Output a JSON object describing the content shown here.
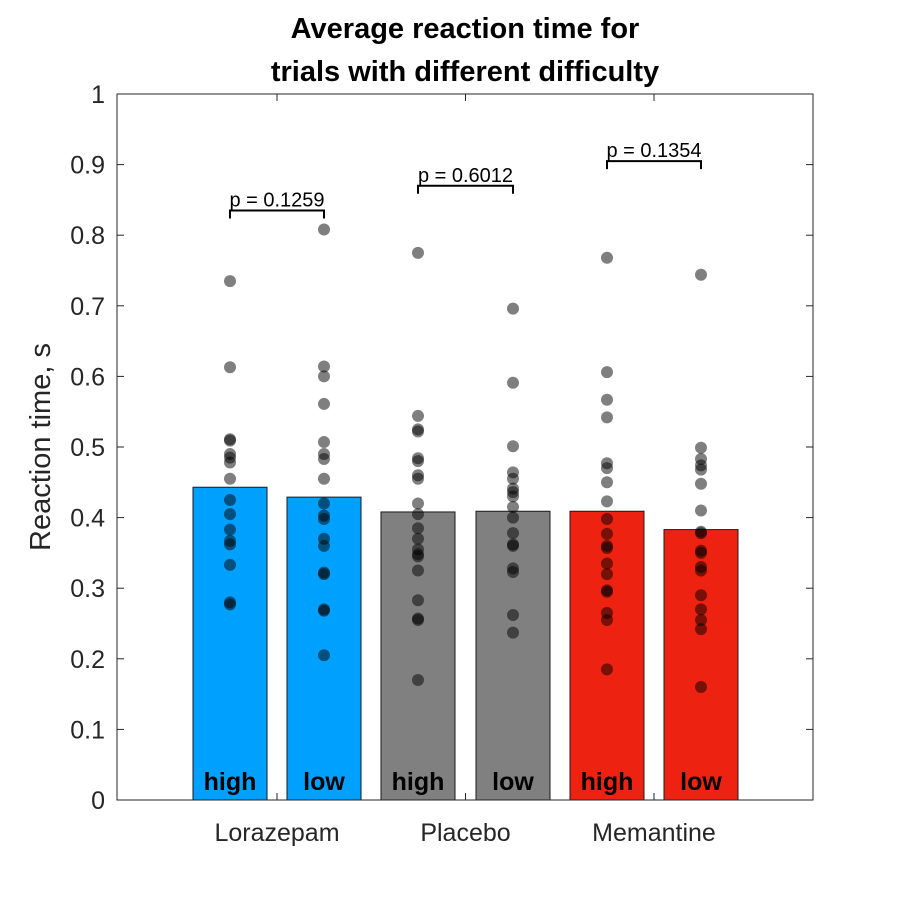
{
  "chart_data": {
    "type": "bar",
    "title_lines": [
      "Average reaction time for",
      "trials with different difficulty"
    ],
    "xlabel": "",
    "ylabel": "Reaction time, s",
    "ylim": [
      0,
      1
    ],
    "yticks": [
      "0",
      "0.1",
      "0.2",
      "0.3",
      "0.4",
      "0.5",
      "0.6",
      "0.7",
      "0.8",
      "0.9",
      "1"
    ],
    "grid": false,
    "groups": [
      "Lorazepam",
      "Placebo",
      "Memantine"
    ],
    "bars": [
      {
        "group": "Lorazepam",
        "label": "high",
        "value": 0.443,
        "color": "#00a0ff",
        "points": [
          0.735,
          0.613,
          0.511,
          0.509,
          0.49,
          0.485,
          0.478,
          0.455,
          0.425,
          0.405,
          0.383,
          0.367,
          0.362,
          0.333,
          0.28,
          0.277
        ]
      },
      {
        "group": "Lorazepam",
        "label": "low",
        "value": 0.429,
        "color": "#00a0ff",
        "points": [
          0.808,
          0.614,
          0.6,
          0.561,
          0.507,
          0.49,
          0.483,
          0.455,
          0.42,
          0.403,
          0.398,
          0.37,
          0.36,
          0.322,
          0.32,
          0.27,
          0.268,
          0.205
        ]
      },
      {
        "group": "Placebo",
        "label": "high",
        "value": 0.408,
        "color": "#808080",
        "points": [
          0.775,
          0.544,
          0.525,
          0.522,
          0.484,
          0.48,
          0.46,
          0.455,
          0.42,
          0.405,
          0.385,
          0.37,
          0.355,
          0.348,
          0.345,
          0.325,
          0.283,
          0.257,
          0.255,
          0.17
        ]
      },
      {
        "group": "Placebo",
        "label": "low",
        "value": 0.409,
        "color": "#808080",
        "points": [
          0.696,
          0.591,
          0.501,
          0.464,
          0.455,
          0.441,
          0.436,
          0.43,
          0.415,
          0.4,
          0.378,
          0.362,
          0.36,
          0.328,
          0.323,
          0.262,
          0.237
        ]
      },
      {
        "group": "Memantine",
        "label": "high",
        "value": 0.409,
        "color": "#ee2211",
        "points": [
          0.768,
          0.606,
          0.567,
          0.542,
          0.477,
          0.47,
          0.45,
          0.423,
          0.398,
          0.377,
          0.36,
          0.357,
          0.335,
          0.32,
          0.297,
          0.295,
          0.265,
          0.255,
          0.185
        ]
      },
      {
        "group": "Memantine",
        "label": "low",
        "value": 0.383,
        "color": "#ee2211",
        "points": [
          0.744,
          0.499,
          0.483,
          0.474,
          0.468,
          0.448,
          0.41,
          0.38,
          0.378,
          0.353,
          0.35,
          0.33,
          0.325,
          0.29,
          0.27,
          0.255,
          0.242,
          0.16
        ]
      }
    ],
    "comparisons": [
      {
        "group": "Lorazepam",
        "text": "p = 0.1259",
        "y": 0.835
      },
      {
        "group": "Placebo",
        "text": "p = 0.6012",
        "y": 0.87
      },
      {
        "group": "Memantine",
        "text": "p = 0.1354",
        "y": 0.905
      }
    ]
  }
}
